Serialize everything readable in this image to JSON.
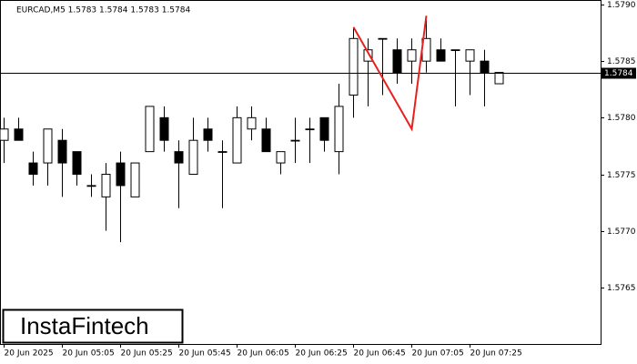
{
  "chart_data": {
    "type": "candlestick",
    "title": "EURCAD,M5  1.5783 1.5784 1.5783 1.5784",
    "watermark": "InstaFintech",
    "categories": [
      "20 Jun 2025",
      null,
      null,
      null,
      "20 Jun 05:05",
      null,
      null,
      null,
      "20 Jun 05:25",
      null,
      null,
      null,
      "20 Jun 05:45",
      null,
      null,
      null,
      "20 Jun 06:05",
      null,
      null,
      null,
      "20 Jun 06:25",
      null,
      null,
      null,
      "20 Jun 06:45",
      null,
      null,
      null,
      "20 Jun 07:05",
      null,
      null,
      null,
      "20 Jun 07:25",
      null,
      null
    ],
    "open": [
      1.5778,
      1.5779,
      1.5776,
      1.5776,
      1.5778,
      1.5777,
      1.5774,
      1.5773,
      1.5776,
      1.5773,
      1.5777,
      1.578,
      1.5777,
      1.5775,
      1.5779,
      1.5777,
      1.5776,
      1.5779,
      1.5779,
      1.5776,
      1.5778,
      1.5779,
      1.578,
      1.5777,
      1.5782,
      1.5785,
      1.5787,
      1.5786,
      1.5785,
      1.5785,
      1.5786,
      1.5786,
      1.5785,
      1.5785,
      1.5783
    ],
    "high": [
      1.578,
      1.578,
      1.5777,
      1.5779,
      1.5779,
      1.5777,
      1.5775,
      1.5776,
      1.5777,
      1.5776,
      1.5781,
      1.5781,
      1.5778,
      1.578,
      1.578,
      1.5778,
      1.5781,
      1.5781,
      1.578,
      1.5777,
      1.578,
      1.578,
      1.578,
      1.5783,
      1.5788,
      1.5787,
      1.5787,
      1.5787,
      1.5787,
      1.5789,
      1.5787,
      1.5786,
      1.5786,
      1.5786,
      1.5784
    ],
    "low": [
      1.5776,
      1.5778,
      1.5774,
      1.5774,
      1.5773,
      1.5774,
      1.5773,
      1.577,
      1.5769,
      1.5773,
      1.5777,
      1.5777,
      1.5772,
      1.5775,
      1.5777,
      1.5772,
      1.5776,
      1.5778,
      1.5777,
      1.5775,
      1.5776,
      1.5776,
      1.5777,
      1.5775,
      1.578,
      1.5781,
      1.5782,
      1.5783,
      1.5783,
      1.5784,
      1.5785,
      1.5781,
      1.5782,
      1.5781,
      1.5783
    ],
    "close": [
      1.5779,
      1.5778,
      1.5775,
      1.5779,
      1.5776,
      1.5775,
      1.5774,
      1.5775,
      1.5774,
      1.5776,
      1.5781,
      1.5778,
      1.5776,
      1.5778,
      1.5778,
      1.5777,
      1.578,
      1.578,
      1.5777,
      1.5777,
      1.5778,
      1.5779,
      1.5778,
      1.5781,
      1.5787,
      1.5786,
      1.5787,
      1.5784,
      1.5786,
      1.5787,
      1.5785,
      1.5786,
      1.5786,
      1.5784,
      1.5784
    ],
    "up_color": "#ffffff",
    "down_color": "#000000",
    "outline_color": "#000000",
    "ylim": [
      1.576,
      1.579
    ],
    "yticks": [
      1.5765,
      {
        "value": 1.577,
        "label": "1.5770"
      },
      1.5775,
      {
        "value": 1.578,
        "label": "1.5780"
      },
      1.5785,
      {
        "value": 1.579,
        "label": "1.5790"
      }
    ],
    "last_price": 1.5784,
    "pattern": {
      "color": "#e8201f",
      "candles": [
        24,
        28,
        29
      ],
      "prices": [
        1.5788,
        1.5779,
        1.5789
      ]
    }
  }
}
